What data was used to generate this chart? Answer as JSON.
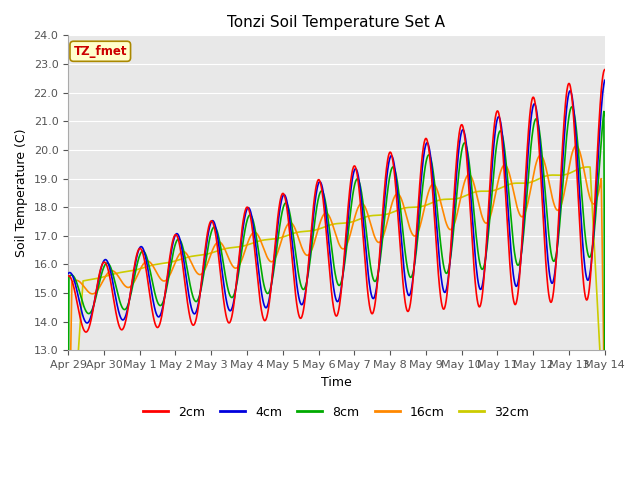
{
  "title": "Tonzi Soil Temperature Set A",
  "xlabel": "Time",
  "ylabel": "Soil Temperature (C)",
  "ylim": [
    13.0,
    24.0
  ],
  "yticks": [
    13.0,
    14.0,
    15.0,
    16.0,
    17.0,
    18.0,
    19.0,
    20.0,
    21.0,
    22.0,
    23.0,
    24.0
  ],
  "xtick_labels": [
    "Apr 29",
    "Apr 30",
    "May 1",
    "May 2",
    "May 3",
    "May 4",
    "May 5",
    "May 6",
    "May 7",
    "May 8",
    "May 9",
    "May 10",
    "May 11",
    "May 12",
    "May 13",
    "May 14"
  ],
  "label_text": "TZ_fmet",
  "label_bg": "#ffffcc",
  "label_border": "#cc0000",
  "colors": {
    "2cm": "#ff0000",
    "4cm": "#0000dd",
    "8cm": "#00aa00",
    "16cm": "#ff8800",
    "32cm": "#cccc00"
  },
  "line_labels": [
    "2cm",
    "4cm",
    "8cm",
    "16cm",
    "32cm"
  ],
  "bg_color": "#e8e8e8",
  "n_points": 1440
}
